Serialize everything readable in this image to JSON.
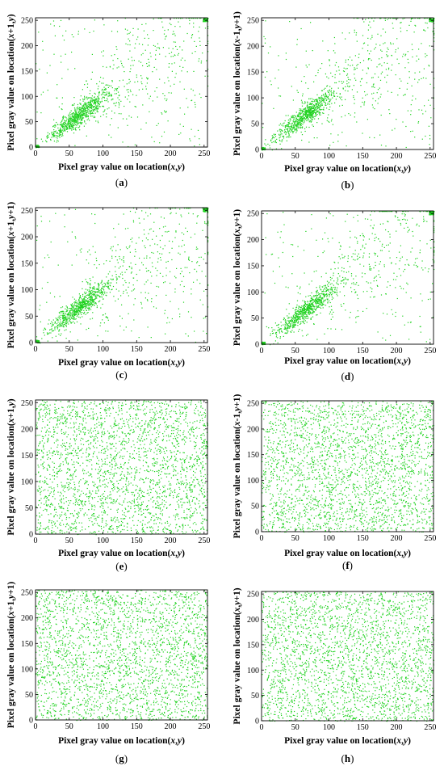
{
  "figure": {
    "point_color": "#1fd21f",
    "axis_color": "#000000"
  },
  "chart_data": [
    {
      "panel": "a",
      "caption": "(a)",
      "type": "scatter",
      "xlabel": "Pixel gray value on location(x,y)",
      "ylabel": "Pixel gray value on location(x+1,y)",
      "xlim": [
        0,
        255
      ],
      "ylim": [
        0,
        255
      ],
      "xticks": [
        "0",
        "50",
        "100",
        "150",
        "200",
        "250"
      ],
      "yticks": [
        "0",
        "50",
        "100",
        "150",
        "200",
        "250"
      ],
      "pattern": "correlated",
      "center": [
        62,
        62
      ],
      "n_points": 1200,
      "corner_cluster": [
        250,
        250
      ],
      "origin_cluster": true
    },
    {
      "panel": "b",
      "caption": "(b)",
      "type": "scatter",
      "xlabel": "Pixel gray value on location(x,y)",
      "ylabel": "Pixel gray value on location(x-1,y+1)",
      "xlim": [
        0,
        255
      ],
      "ylim": [
        0,
        255
      ],
      "xticks": [
        "0",
        "50",
        "100",
        "150",
        "200",
        "250"
      ],
      "yticks": [
        "0",
        "50",
        "100",
        "150",
        "200",
        "250"
      ],
      "pattern": "correlated",
      "center": [
        62,
        65
      ],
      "n_points": 1200,
      "corner_cluster": [
        250,
        250
      ],
      "origin_cluster": true
    },
    {
      "panel": "c",
      "caption": "(c)",
      "type": "scatter",
      "xlabel": "Pixel gray value on location(x,y)",
      "ylabel": "Pixel gray value on location(x+1,y+1)",
      "xlim": [
        0,
        255
      ],
      "ylim": [
        0,
        255
      ],
      "xticks": [
        "0",
        "50",
        "100",
        "150",
        "200",
        "250"
      ],
      "yticks": [
        "0",
        "50",
        "100",
        "150",
        "200",
        "250"
      ],
      "pattern": "correlated",
      "center": [
        62,
        65
      ],
      "n_points": 1200,
      "corner_cluster": [
        250,
        250
      ],
      "origin_cluster": true
    },
    {
      "panel": "d",
      "caption": "(d)",
      "type": "scatter",
      "xlabel": "Pixel gray value on location(x,y)",
      "ylabel": "Pixel gray value on location(x,y+1)",
      "xlim": [
        0,
        255
      ],
      "ylim": [
        0,
        255
      ],
      "xticks": [
        "0",
        "50",
        "100",
        "150",
        "200",
        "250"
      ],
      "yticks": [
        "0",
        "50",
        "100",
        "150",
        "200",
        "250"
      ],
      "pattern": "correlated",
      "center": [
        65,
        65
      ],
      "n_points": 1200,
      "corner_cluster": [
        250,
        250
      ],
      "origin_cluster": true
    },
    {
      "panel": "e",
      "caption": "(e)",
      "type": "scatter",
      "xlabel": "Pixel gray value on location(x,y)",
      "ylabel": "Pixel gray value on location(x+1,y)",
      "xlim": [
        0,
        255
      ],
      "ylim": [
        0,
        255
      ],
      "xticks": [
        "0",
        "50",
        "100",
        "150",
        "200",
        "250"
      ],
      "yticks": [
        "0",
        "50",
        "100",
        "150",
        "200",
        "250"
      ],
      "pattern": "uniform",
      "n_points": 2600
    },
    {
      "panel": "f",
      "caption": "(f)",
      "type": "scatter",
      "xlabel": "Pixel gray value on location(x,y)",
      "ylabel": "Pixel gray value on location(x-1,y+1)",
      "xlim": [
        0,
        255
      ],
      "ylim": [
        0,
        255
      ],
      "xticks": [
        "0",
        "50",
        "100",
        "150",
        "200",
        "250"
      ],
      "yticks": [
        "0",
        "50",
        "100",
        "150",
        "200",
        "250"
      ],
      "pattern": "uniform",
      "n_points": 2600
    },
    {
      "panel": "g",
      "caption": "(g)",
      "type": "scatter",
      "xlabel": "Pixel gray value on location(x,y)",
      "ylabel": "Pixel gray value on location(x+1,y+1)",
      "xlim": [
        0,
        255
      ],
      "ylim": [
        0,
        255
      ],
      "xticks": [
        "0",
        "50",
        "100",
        "150",
        "200",
        "250"
      ],
      "yticks": [
        "0",
        "50",
        "100",
        "150",
        "200",
        "250"
      ],
      "pattern": "uniform",
      "n_points": 2600
    },
    {
      "panel": "h",
      "caption": "(h)",
      "type": "scatter",
      "xlabel": "Pixel gray value on location(x,y)",
      "ylabel": "Pixel gray value on location(x,y+1)",
      "xlim": [
        0,
        255
      ],
      "ylim": [
        0,
        255
      ],
      "xticks": [
        "0",
        "50",
        "100",
        "150",
        "200",
        "250"
      ],
      "yticks": [
        "0",
        "50",
        "100",
        "150",
        "200",
        "250"
      ],
      "pattern": "uniform",
      "n_points": 2600
    }
  ]
}
